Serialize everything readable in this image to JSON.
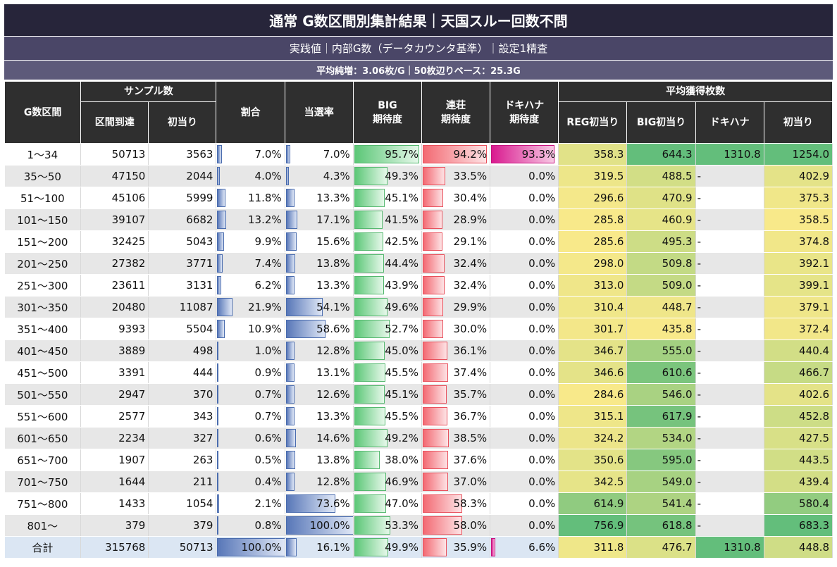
{
  "title": "通常 G数区間別集計結果｜天国スルー回数不問",
  "subtitle": "実践値｜内部G数（データカウンタ基準）｜設定1精査",
  "note": "平均純増：3.06枚/G｜50枚辺りベース：25.3G",
  "headers": {
    "range": "G数区間",
    "sample": "サンプル数",
    "arrival": "区間到達",
    "first_hit": "初当り",
    "ratio": "割合",
    "win_rate": "当選率",
    "big_exp": "BIG\n期待度",
    "renso_exp": "連荘\n期待度",
    "dokihana_exp": "ドキハナ\n期待度",
    "avg_medals": "平均獲得枚数",
    "reg_first": "REG初当り",
    "big_first": "BIG初当り",
    "dokihana": "ドキハナ",
    "first": "初当り"
  },
  "rows": [
    {
      "range": "1～34",
      "arrival": "50713",
      "first": "3563",
      "ratio": "7.0%",
      "win": "7.0%",
      "big": "95.7%",
      "renso": "94.2%",
      "doki": "93.3%",
      "reg_med": "358.3",
      "big_med": "644.3",
      "doki_med": "1310.8",
      "first_med": "1254.0"
    },
    {
      "range": "35～50",
      "arrival": "47150",
      "first": "2044",
      "ratio": "4.0%",
      "win": "4.3%",
      "big": "49.3%",
      "renso": "33.5%",
      "doki": "0.0%",
      "reg_med": "319.5",
      "big_med": "488.5",
      "doki_med": "-",
      "first_med": "402.9"
    },
    {
      "range": "51～100",
      "arrival": "45106",
      "first": "5999",
      "ratio": "11.8%",
      "win": "13.3%",
      "big": "45.1%",
      "renso": "30.4%",
      "doki": "0.0%",
      "reg_med": "296.6",
      "big_med": "470.9",
      "doki_med": "-",
      "first_med": "375.3"
    },
    {
      "range": "101～150",
      "arrival": "39107",
      "first": "6682",
      "ratio": "13.2%",
      "win": "17.1%",
      "big": "41.5%",
      "renso": "28.9%",
      "doki": "0.0%",
      "reg_med": "285.8",
      "big_med": "460.9",
      "doki_med": "-",
      "first_med": "358.5"
    },
    {
      "range": "151～200",
      "arrival": "32425",
      "first": "5043",
      "ratio": "9.9%",
      "win": "15.6%",
      "big": "42.5%",
      "renso": "29.1%",
      "doki": "0.0%",
      "reg_med": "285.6",
      "big_med": "495.3",
      "doki_med": "-",
      "first_med": "374.8"
    },
    {
      "range": "201～250",
      "arrival": "27382",
      "first": "3771",
      "ratio": "7.4%",
      "win": "13.8%",
      "big": "44.4%",
      "renso": "32.4%",
      "doki": "0.0%",
      "reg_med": "298.0",
      "big_med": "509.8",
      "doki_med": "-",
      "first_med": "392.1"
    },
    {
      "range": "251～300",
      "arrival": "23611",
      "first": "3131",
      "ratio": "6.2%",
      "win": "13.3%",
      "big": "43.9%",
      "renso": "32.4%",
      "doki": "0.0%",
      "reg_med": "313.0",
      "big_med": "509.0",
      "doki_med": "-",
      "first_med": "399.1"
    },
    {
      "range": "301～350",
      "arrival": "20480",
      "first": "11087",
      "ratio": "21.9%",
      "win": "54.1%",
      "big": "49.6%",
      "renso": "29.9%",
      "doki": "0.0%",
      "reg_med": "310.4",
      "big_med": "448.7",
      "doki_med": "-",
      "first_med": "379.1"
    },
    {
      "range": "351～400",
      "arrival": "9393",
      "first": "5504",
      "ratio": "10.9%",
      "win": "58.6%",
      "big": "52.7%",
      "renso": "30.0%",
      "doki": "0.0%",
      "reg_med": "301.7",
      "big_med": "435.8",
      "doki_med": "-",
      "first_med": "372.4"
    },
    {
      "range": "401～450",
      "arrival": "3889",
      "first": "498",
      "ratio": "1.0%",
      "win": "12.8%",
      "big": "45.0%",
      "renso": "36.1%",
      "doki": "0.0%",
      "reg_med": "346.7",
      "big_med": "555.0",
      "doki_med": "-",
      "first_med": "440.4"
    },
    {
      "range": "451～500",
      "arrival": "3391",
      "first": "444",
      "ratio": "0.9%",
      "win": "13.1%",
      "big": "45.5%",
      "renso": "37.4%",
      "doki": "0.0%",
      "reg_med": "346.6",
      "big_med": "610.6",
      "doki_med": "-",
      "first_med": "466.7"
    },
    {
      "range": "501～550",
      "arrival": "2947",
      "first": "370",
      "ratio": "0.7%",
      "win": "12.6%",
      "big": "45.1%",
      "renso": "35.7%",
      "doki": "0.0%",
      "reg_med": "284.6",
      "big_med": "546.0",
      "doki_med": "-",
      "first_med": "402.6"
    },
    {
      "range": "551～600",
      "arrival": "2577",
      "first": "343",
      "ratio": "0.7%",
      "win": "13.3%",
      "big": "45.5%",
      "renso": "36.7%",
      "doki": "0.0%",
      "reg_med": "315.1",
      "big_med": "617.9",
      "doki_med": "-",
      "first_med": "452.8"
    },
    {
      "range": "601～650",
      "arrival": "2234",
      "first": "327",
      "ratio": "0.6%",
      "win": "14.6%",
      "big": "49.2%",
      "renso": "38.5%",
      "doki": "0.0%",
      "reg_med": "324.2",
      "big_med": "534.0",
      "doki_med": "-",
      "first_med": "427.5"
    },
    {
      "range": "651～700",
      "arrival": "1907",
      "first": "263",
      "ratio": "0.5%",
      "win": "13.8%",
      "big": "38.0%",
      "renso": "37.6%",
      "doki": "0.0%",
      "reg_med": "350.6",
      "big_med": "595.0",
      "doki_med": "-",
      "first_med": "443.5"
    },
    {
      "range": "701～750",
      "arrival": "1644",
      "first": "211",
      "ratio": "0.4%",
      "win": "12.8%",
      "big": "46.9%",
      "renso": "37.0%",
      "doki": "0.0%",
      "reg_med": "342.5",
      "big_med": "549.0",
      "doki_med": "-",
      "first_med": "439.4"
    },
    {
      "range": "751～800",
      "arrival": "1433",
      "first": "1054",
      "ratio": "2.1%",
      "win": "73.6%",
      "big": "47.0%",
      "renso": "58.3%",
      "doki": "0.0%",
      "reg_med": "614.9",
      "big_med": "541.4",
      "doki_med": "-",
      "first_med": "580.4"
    },
    {
      "range": "801～",
      "arrival": "379",
      "first": "379",
      "ratio": "0.8%",
      "win": "100.0%",
      "big": "53.3%",
      "renso": "58.0%",
      "doki": "0.0%",
      "reg_med": "756.9",
      "big_med": "618.8",
      "doki_med": "-",
      "first_med": "683.3"
    }
  ],
  "total": {
    "range": "合計",
    "arrival": "315768",
    "first": "50713",
    "ratio": "100.0%",
    "win": "16.1%",
    "big": "49.9%",
    "renso": "35.9%",
    "doki": "6.6%",
    "reg_med": "311.8",
    "big_med": "476.7",
    "doki_med": "1310.8",
    "first_med": "448.8"
  },
  "colors": {
    "header_bg": "#2f2f2f",
    "title_bg": "#27253a",
    "bar_blue": "#5877b8",
    "bar_green": "#5cc777",
    "bar_red": "#f36a73",
    "bar_pink": "#d91a8f",
    "scale_low": "#f8e98a",
    "scale_high": "#63be7b"
  }
}
